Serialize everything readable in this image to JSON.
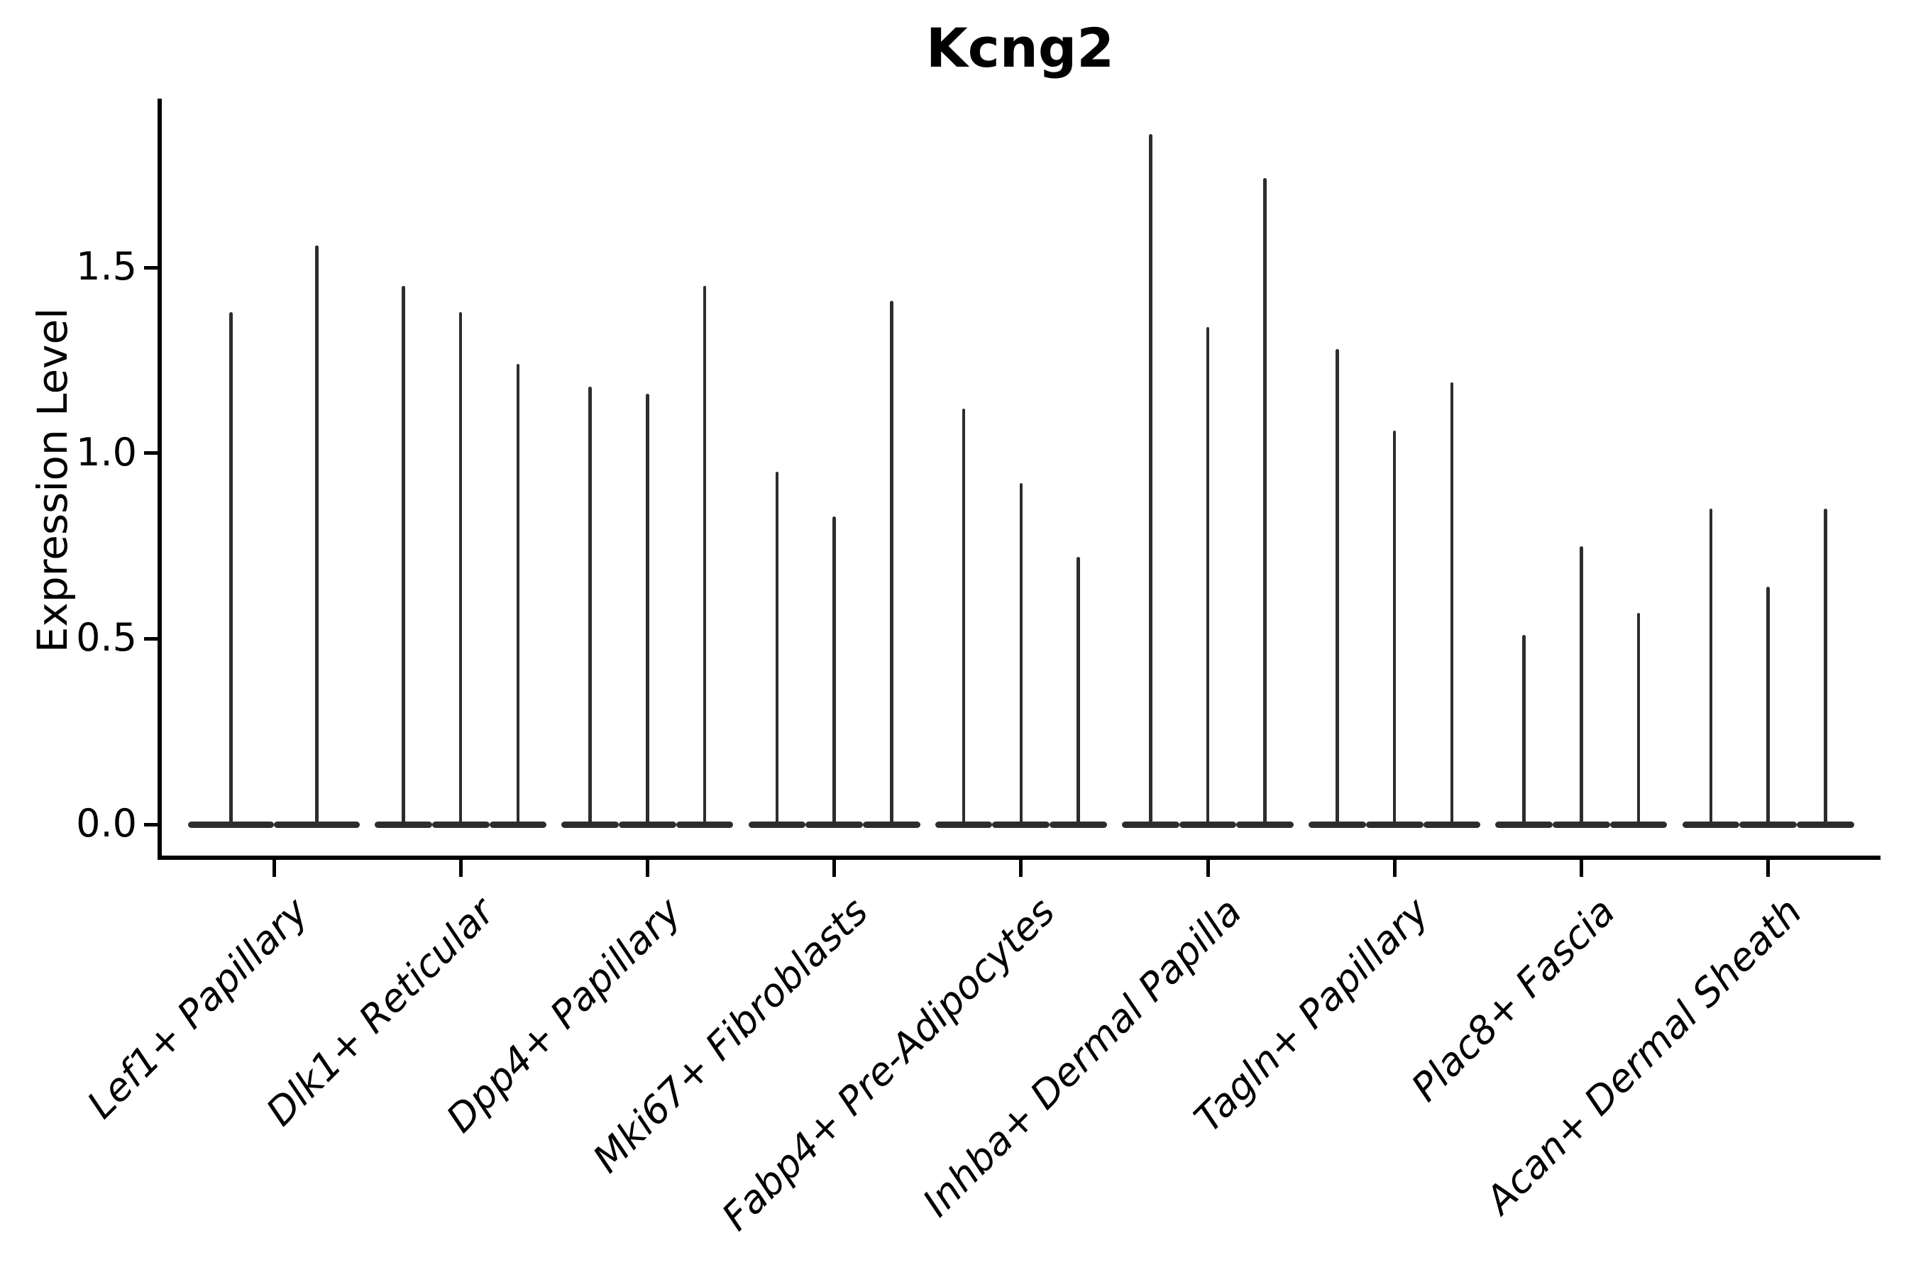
{
  "chart_data": {
    "type": "violin",
    "title": "Kcng2",
    "ylabel": "Expression Level",
    "xlabel": "",
    "yticks": [
      "0.0",
      "0.5",
      "1.0",
      "1.5"
    ],
    "ytick_values": [
      0.0,
      0.5,
      1.0,
      1.5
    ],
    "ylim": [
      -0.09,
      1.95
    ],
    "grid": false,
    "legend": "none",
    "violin_color": "#2d2d2d",
    "axis_color": "#000000",
    "background": "#ffffff",
    "categories": [
      {
        "label": "Lef1+ Papillary",
        "violin_max_values": [
          1.38,
          1.56
        ]
      },
      {
        "label": "Dlk1+ Reticular",
        "violin_max_values": [
          1.45,
          1.38,
          1.24
        ]
      },
      {
        "label": "Dpp4+ Papillary",
        "violin_max_values": [
          1.18,
          1.16,
          1.45
        ]
      },
      {
        "label": "Mki67+ Fibroblasts",
        "violin_max_values": [
          0.95,
          0.83,
          1.41
        ]
      },
      {
        "label": "Fabp4+ Pre-Adipocytes",
        "violin_max_values": [
          1.12,
          0.92,
          0.72
        ]
      },
      {
        "label": "Inhba+ Dermal Papilla",
        "violin_max_values": [
          1.86,
          1.34,
          1.74
        ]
      },
      {
        "label": "Tagln+ Papillary",
        "violin_max_values": [
          1.28,
          1.06,
          1.19
        ]
      },
      {
        "label": "Plac8+ Fascia",
        "violin_max_values": [
          0.51,
          0.75,
          0.57
        ]
      },
      {
        "label": "Acan+ Dermal Sheath",
        "violin_max_values": [
          0.85,
          0.64,
          0.85
        ]
      }
    ]
  }
}
